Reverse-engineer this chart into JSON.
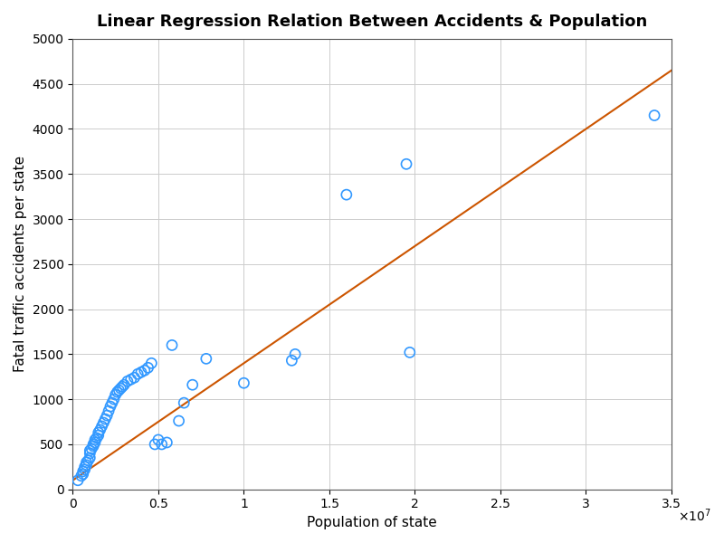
{
  "title": "Linear Regression Relation Between Accidents & Population",
  "xlabel": "Population of state",
  "ylabel": "Fatal traffic accidents per state",
  "xlim": [
    0,
    35000000.0
  ],
  "ylim": [
    0,
    5000
  ],
  "scatter_x": [
    300000,
    500000,
    600000,
    600000,
    700000,
    700000,
    800000,
    800000,
    900000,
    1000000,
    1000000,
    1000000,
    1100000,
    1200000,
    1200000,
    1300000,
    1300000,
    1400000,
    1500000,
    1500000,
    1600000,
    1700000,
    1800000,
    1900000,
    2000000,
    2100000,
    2200000,
    2300000,
    2400000,
    2500000,
    2600000,
    2700000,
    2800000,
    2900000,
    3000000,
    3200000,
    3400000,
    3600000,
    3800000,
    4000000,
    4200000,
    4400000,
    4600000,
    4800000,
    5000000,
    5200000,
    5500000,
    5800000,
    6200000,
    6500000,
    7000000,
    7800000,
    10000000,
    12800000,
    13000000,
    16000000,
    19500000,
    19700000,
    34000000
  ],
  "scatter_y": [
    100,
    150,
    170,
    200,
    220,
    250,
    270,
    300,
    320,
    350,
    400,
    430,
    450,
    480,
    500,
    520,
    550,
    570,
    600,
    630,
    660,
    700,
    740,
    780,
    820,
    870,
    920,
    960,
    1000,
    1050,
    1080,
    1100,
    1120,
    1140,
    1160,
    1200,
    1220,
    1240,
    1280,
    1300,
    1320,
    1350,
    1400,
    500,
    550,
    500,
    520,
    1600,
    760,
    960,
    1160,
    1450,
    1180,
    1430,
    1500,
    3270,
    3610,
    1520,
    4150
  ],
  "scatter_color": "#3399FF",
  "scatter_markersize": 8,
  "scatter_linewidths": 1.2,
  "line_color": "#CC5500",
  "line_width": 1.5,
  "grid_color": "#CCCCCC",
  "grid_linewidth": 0.7,
  "bg_color": "#FFFFFF",
  "title_fontsize": 13,
  "axis_label_fontsize": 11,
  "tick_fontsize": 10
}
